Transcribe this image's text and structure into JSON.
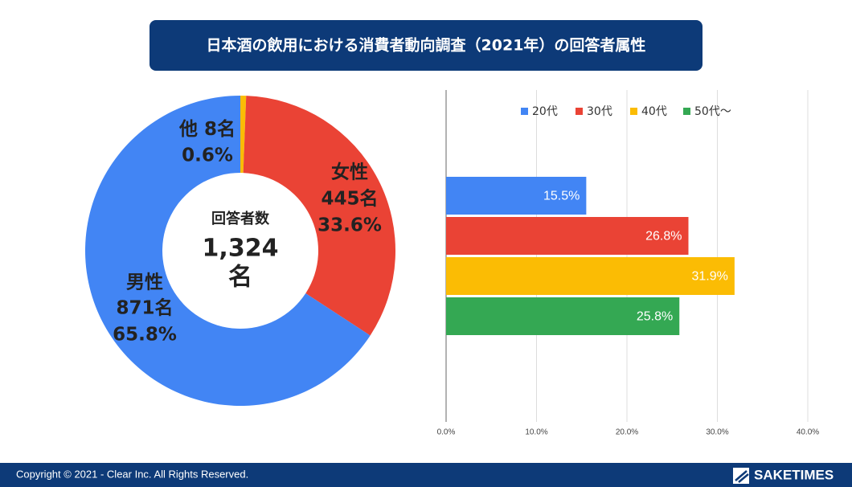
{
  "header": {
    "title": "日本酒の飲用における消費者動向調査（2021年）の回答者属性"
  },
  "chart_data": [
    {
      "type": "donut",
      "categories": [
        "他",
        "女性",
        "男性"
      ],
      "values": [
        0.6,
        33.6,
        65.8
      ],
      "value_labels": [
        "0.6%",
        "33.6%",
        "65.8%"
      ],
      "counts": [
        8,
        445,
        871
      ],
      "count_labels": [
        "8名",
        "445名",
        "871名"
      ],
      "colors": [
        "#fbbc04",
        "#ea4335",
        "#4285f4"
      ],
      "center_label": "回答者数",
      "total": 1324,
      "total_label": "1,324",
      "total_unit": "名"
    },
    {
      "type": "hbar",
      "categories": [
        null
      ],
      "series": [
        {
          "name": "20代",
          "color": "#4285f4",
          "values": [
            15.5
          ],
          "value_labels": [
            "15.5%"
          ]
        },
        {
          "name": "30代",
          "color": "#ea4335",
          "values": [
            26.8
          ],
          "value_labels": [
            "26.8%"
          ]
        },
        {
          "name": "40代",
          "color": "#fbbc04",
          "values": [
            31.9
          ],
          "value_labels": [
            "31.9%"
          ]
        },
        {
          "name": "50代〜",
          "color": "#34a853",
          "values": [
            25.8
          ],
          "value_labels": [
            "25.8%"
          ]
        }
      ],
      "xlim": [
        0,
        40
      ],
      "xticks": [
        {
          "value": 0,
          "label": "0.0%"
        },
        {
          "value": 10,
          "label": "10.0%"
        },
        {
          "value": 20,
          "label": "20.0%"
        },
        {
          "value": 30,
          "label": "30.0%"
        },
        {
          "value": 40,
          "label": "40.0%"
        }
      ],
      "grid": true,
      "legend": "top"
    }
  ],
  "footer": {
    "copyright": "Copyright © 2021 - Clear Inc. All Rights Reserved.",
    "brand": "SAKETIMES"
  }
}
